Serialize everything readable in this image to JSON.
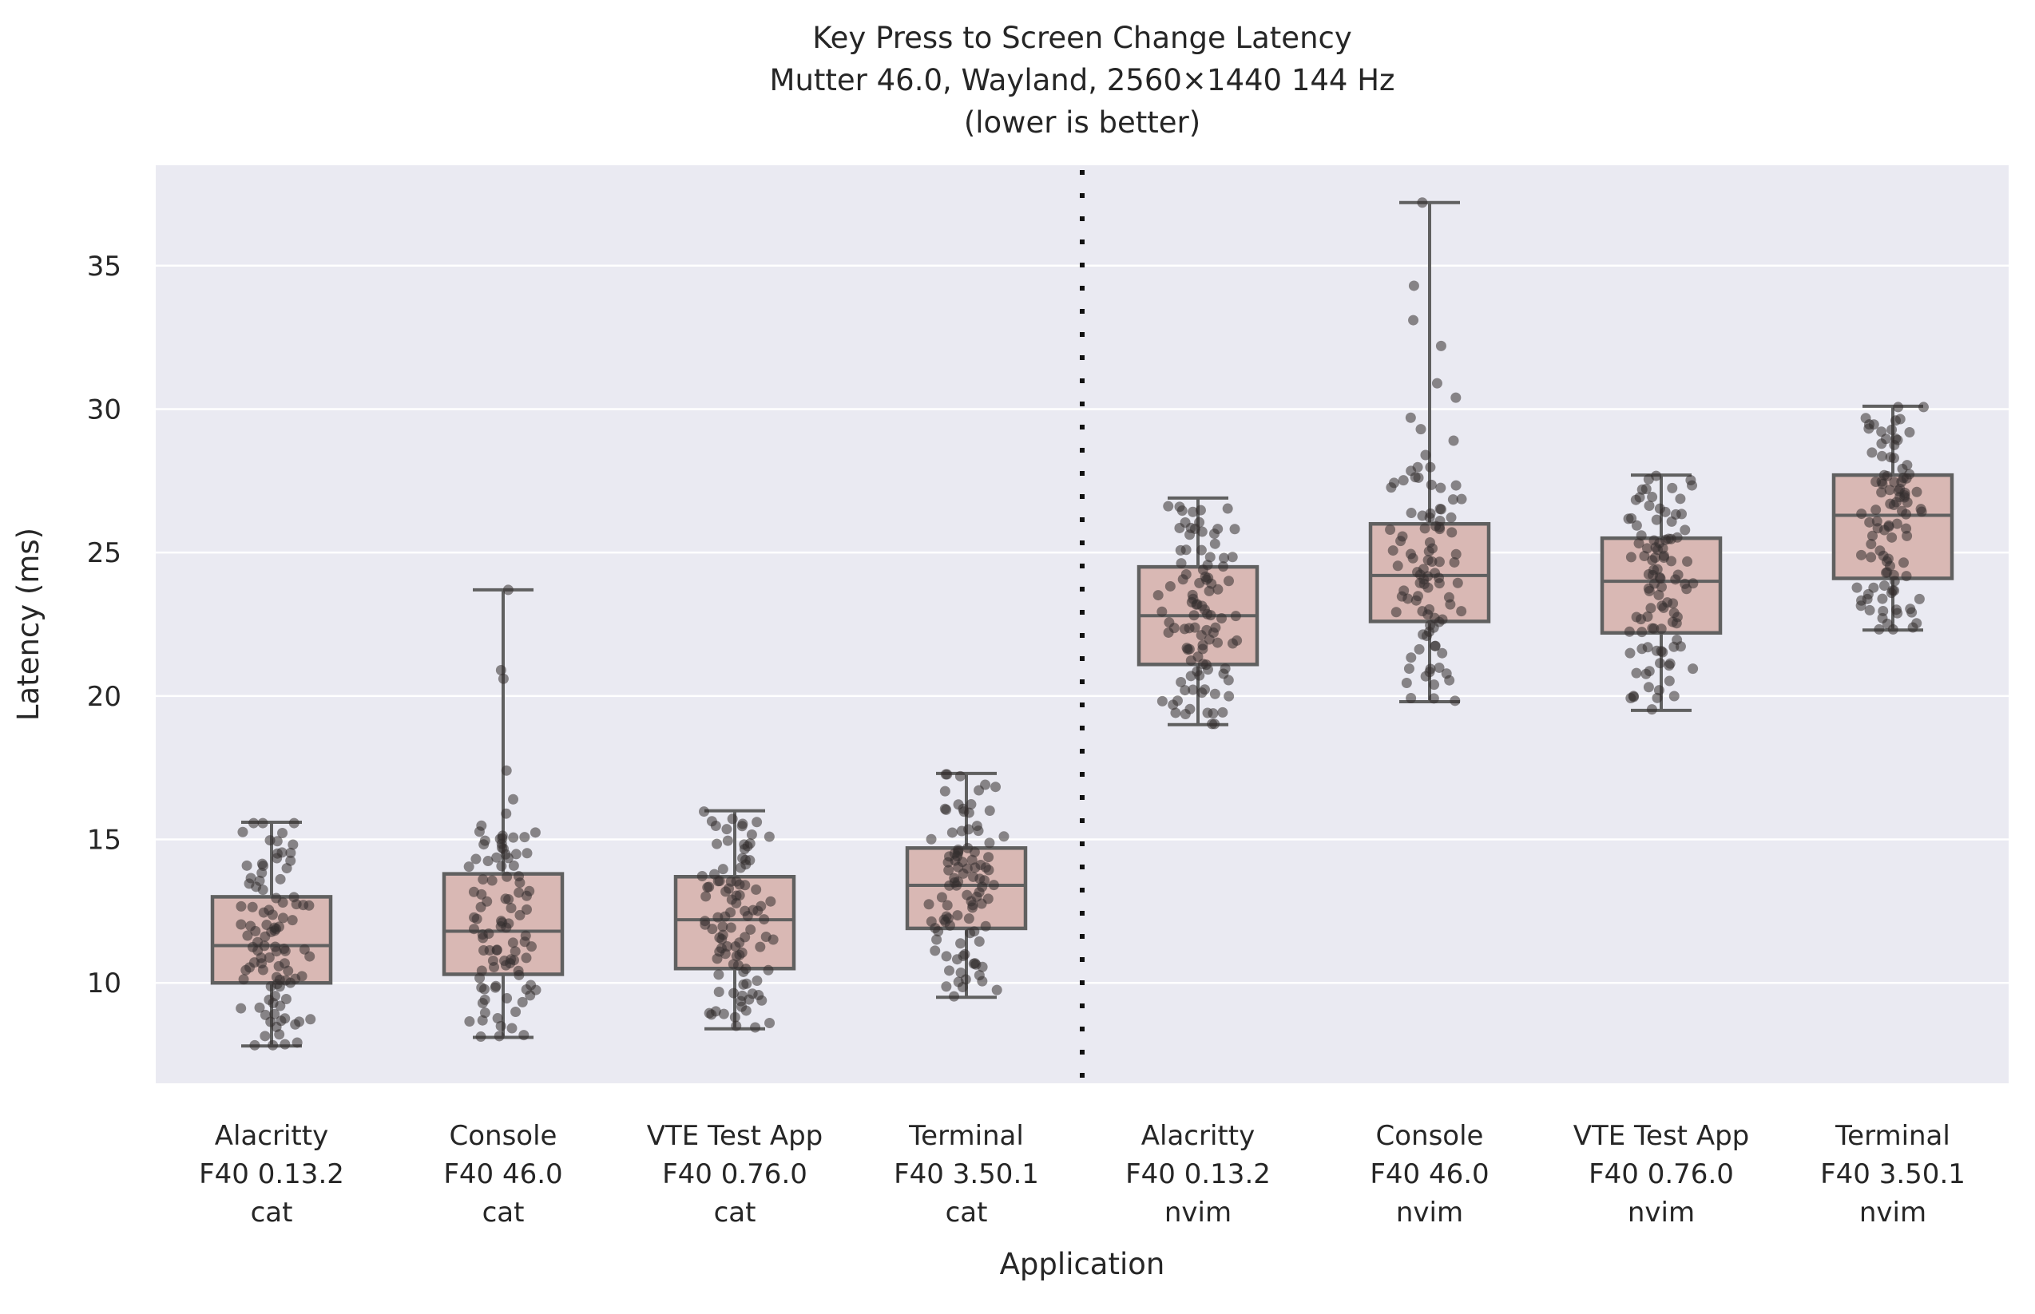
{
  "chart_data": {
    "type": "boxplot_with_strip",
    "title_lines": [
      "Key Press to Screen Change Latency",
      "Mutter 46.0, Wayland, 2560×1440 144 Hz",
      "(lower is better)"
    ],
    "xlabel": "Application",
    "ylabel": "Latency (ms)",
    "ylim": [
      6.5,
      38.5
    ],
    "yticks": [
      10,
      15,
      20,
      25,
      30,
      35
    ],
    "grid": "horizontal-white-on-lavender",
    "separator_after_category_index": 3,
    "categories": [
      {
        "label_lines": [
          "Alacritty",
          "F40 0.13.2",
          "cat"
        ],
        "stats": {
          "min": 7.8,
          "q1": 10.0,
          "median": 11.3,
          "q3": 13.0,
          "max": 15.6
        },
        "n_points": 100,
        "tail_points": [],
        "seed": 11
      },
      {
        "label_lines": [
          "Console",
          "F40 46.0",
          "cat"
        ],
        "stats": {
          "min": 8.1,
          "q1": 10.3,
          "median": 11.8,
          "q3": 13.8,
          "max": 23.7
        },
        "bulk_max": 15.5,
        "n_points": 100,
        "tail_points": [
          15.9,
          16.4,
          17.4,
          20.6,
          20.9,
          23.7
        ],
        "seed": 22
      },
      {
        "label_lines": [
          "VTE Test App",
          "F40 0.76.0",
          "cat"
        ],
        "stats": {
          "min": 8.4,
          "q1": 10.5,
          "median": 12.2,
          "q3": 13.7,
          "max": 16.0
        },
        "n_points": 100,
        "tail_points": [],
        "seed": 33
      },
      {
        "label_lines": [
          "Terminal",
          "F40 3.50.1",
          "cat"
        ],
        "stats": {
          "min": 9.5,
          "q1": 11.9,
          "median": 13.4,
          "q3": 14.7,
          "max": 17.3
        },
        "n_points": 100,
        "tail_points": [],
        "seed": 44
      },
      {
        "label_lines": [
          "Alacritty",
          "F40 0.13.2",
          "nvim"
        ],
        "stats": {
          "min": 19.0,
          "q1": 21.1,
          "median": 22.8,
          "q3": 24.5,
          "max": 26.9
        },
        "n_points": 100,
        "tail_points": [],
        "seed": 55
      },
      {
        "label_lines": [
          "Console",
          "F40 46.0",
          "nvim"
        ],
        "stats": {
          "min": 19.8,
          "q1": 22.6,
          "median": 24.2,
          "q3": 26.0,
          "max": 37.2
        },
        "bulk_max": 28.0,
        "n_points": 100,
        "tail_points": [
          28.4,
          28.9,
          29.3,
          29.7,
          30.4,
          30.9,
          32.2,
          33.1,
          34.3,
          37.2
        ],
        "seed": 66
      },
      {
        "label_lines": [
          "VTE Test App",
          "F40 0.76.0",
          "nvim"
        ],
        "stats": {
          "min": 19.5,
          "q1": 22.2,
          "median": 24.0,
          "q3": 25.5,
          "max": 27.7
        },
        "n_points": 100,
        "tail_points": [],
        "seed": 77
      },
      {
        "label_lines": [
          "Terminal",
          "F40 3.50.1",
          "nvim"
        ],
        "stats": {
          "min": 22.3,
          "q1": 24.1,
          "median": 26.3,
          "q3": 27.7,
          "max": 30.1
        },
        "n_points": 100,
        "tail_points": [],
        "seed": 88
      }
    ],
    "colors": {
      "axes_background": "#eaeaf2",
      "gridline": "#ffffff",
      "box_fill": "#d9b8b4",
      "box_edge": "#606060",
      "whisker": "#606060",
      "point": "#332e2e",
      "separator": "#111111",
      "text": "#262626"
    }
  }
}
